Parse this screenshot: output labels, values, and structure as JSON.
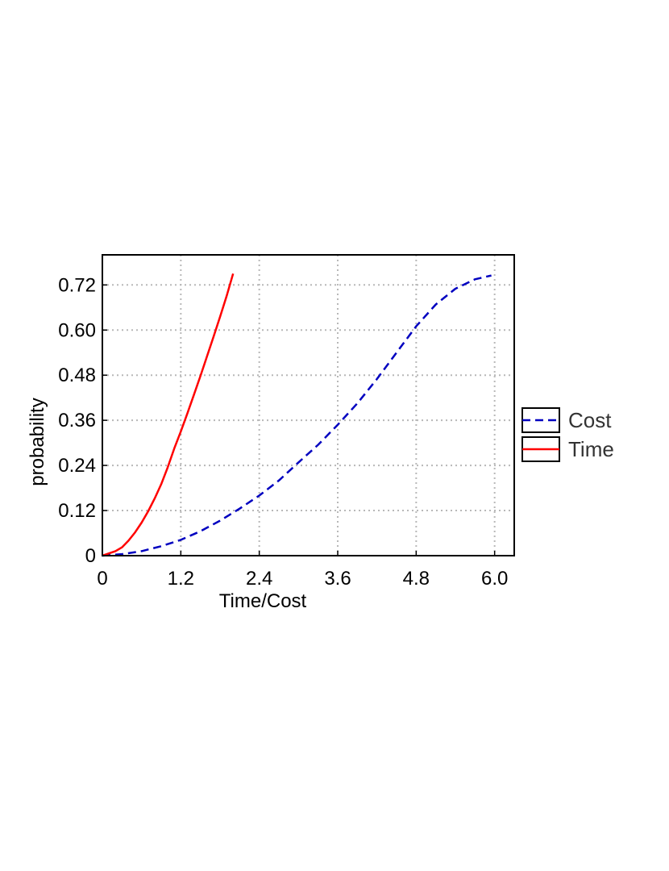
{
  "chart_data": {
    "type": "line",
    "title": "",
    "xlabel": "Time/Cost",
    "ylabel": "probability",
    "xlim": [
      0,
      6.3
    ],
    "ylim": [
      0,
      0.8
    ],
    "x_ticks": [
      0,
      1.2,
      2.4,
      3.6,
      4.8,
      6.0
    ],
    "x_tick_labels": [
      "0",
      "1.2",
      "2.4",
      "3.6",
      "4.8",
      "6.0"
    ],
    "y_ticks": [
      0,
      0.12,
      0.24,
      0.36,
      0.48,
      0.6,
      0.72
    ],
    "y_tick_labels": [
      "0",
      "0.12",
      "0.24",
      "0.36",
      "0.48",
      "0.60",
      "0.72"
    ],
    "grid": true,
    "legend_position": "right",
    "series": [
      {
        "name": "Cost",
        "color": "#0000c0",
        "dash": "dashed",
        "x": [
          0,
          0.3,
          0.6,
          0.9,
          1.2,
          1.5,
          1.8,
          2.1,
          2.4,
          2.7,
          3.0,
          3.3,
          3.6,
          3.9,
          4.2,
          4.5,
          4.8,
          5.1,
          5.4,
          5.7,
          5.95
        ],
        "y": [
          0,
          0.004,
          0.012,
          0.025,
          0.042,
          0.065,
          0.093,
          0.125,
          0.16,
          0.2,
          0.248,
          0.295,
          0.348,
          0.405,
          0.47,
          0.54,
          0.61,
          0.668,
          0.71,
          0.735,
          0.745
        ]
      },
      {
        "name": "Time",
        "color": "#ff0000",
        "dash": "solid",
        "x": [
          0,
          0.1,
          0.2,
          0.3,
          0.4,
          0.5,
          0.6,
          0.7,
          0.8,
          0.9,
          1.0,
          1.1,
          1.2,
          1.3,
          1.4,
          1.5,
          1.6,
          1.7,
          1.8,
          1.9,
          2.0
        ],
        "y": [
          0,
          0.006,
          0.012,
          0.022,
          0.04,
          0.062,
          0.088,
          0.118,
          0.152,
          0.19,
          0.235,
          0.285,
          0.33,
          0.378,
          0.428,
          0.478,
          0.53,
          0.582,
          0.635,
          0.69,
          0.75
        ]
      }
    ]
  }
}
